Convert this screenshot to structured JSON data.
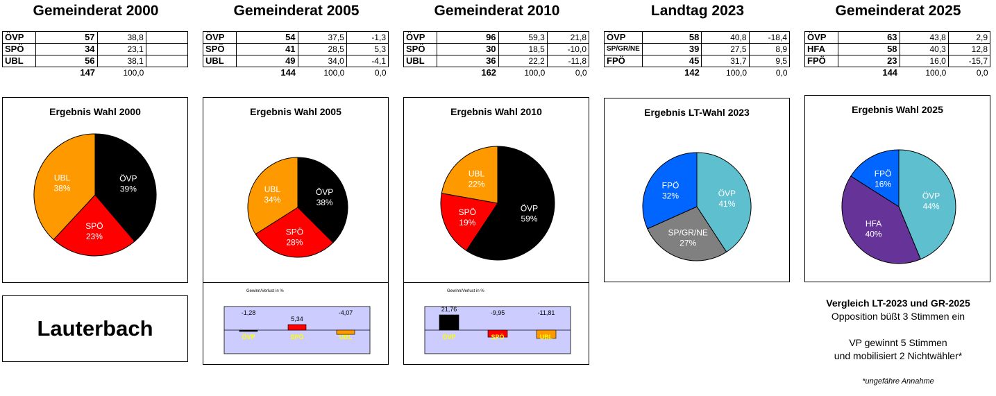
{
  "elections": [
    {
      "heading": "Gemeinderat 2000",
      "chart_title": "Ergebnis Wahl 2000",
      "rows": [
        {
          "party": "ÖVP",
          "seats": "57",
          "pct": "38,8",
          "diff": ""
        },
        {
          "party": "SPÖ",
          "seats": "34",
          "pct": "23,1",
          "diff": ""
        },
        {
          "party": "UBL",
          "seats": "56",
          "pct": "38,1",
          "diff": ""
        }
      ],
      "total": {
        "seats": "147",
        "pct": "100,0",
        "diff": ""
      },
      "chart_data": {
        "type": "pie",
        "title": "Ergebnis Wahl 2000",
        "slices": [
          {
            "name": "ÖVP",
            "value": 38.8,
            "label": "39%",
            "color": "#000000"
          },
          {
            "name": "SPÖ",
            "value": 23.1,
            "label": "23%",
            "color": "#ff0000"
          },
          {
            "name": "UBL",
            "value": 38.1,
            "label": "38%",
            "color": "#ff9900"
          }
        ]
      }
    },
    {
      "heading": "Gemeinderat 2005",
      "chart_title": "Ergebnis Wahl 2005",
      "rows": [
        {
          "party": "ÖVP",
          "seats": "54",
          "pct": "37,5",
          "diff": "-1,3"
        },
        {
          "party": "SPÖ",
          "seats": "41",
          "pct": "28,5",
          "diff": "5,3"
        },
        {
          "party": "UBL",
          "seats": "49",
          "pct": "34,0",
          "diff": "-4,1"
        }
      ],
      "total": {
        "seats": "144",
        "pct": "100,0",
        "diff": "0,0"
      },
      "chart_data": {
        "type": "pie",
        "title": "Ergebnis Wahl 2005",
        "slices": [
          {
            "name": "ÖVP",
            "value": 37.5,
            "label": "38%",
            "color": "#000000"
          },
          {
            "name": "SPÖ",
            "value": 28.5,
            "label": "28%",
            "color": "#ff0000"
          },
          {
            "name": "UBL",
            "value": 34.0,
            "label": "34%",
            "color": "#ff9900"
          }
        ]
      },
      "change": {
        "title": "Gewinn/Verlust in %",
        "chart_data": {
          "type": "bar",
          "categories": [
            "ÖVP",
            "SPÖ",
            "UBL"
          ],
          "values": [
            -1.28,
            5.34,
            -4.07
          ],
          "labels": [
            "-1,28",
            "5,34",
            "-4,07"
          ],
          "colors": [
            "#000000",
            "#ff0000",
            "#ff9900"
          ]
        }
      }
    },
    {
      "heading": "Gemeinderat 2010",
      "chart_title": "Ergebnis Wahl 2010",
      "rows": [
        {
          "party": "ÖVP",
          "seats": "96",
          "pct": "59,3",
          "diff": "21,8"
        },
        {
          "party": "SPÖ",
          "seats": "30",
          "pct": "18,5",
          "diff": "-10,0"
        },
        {
          "party": "UBL",
          "seats": "36",
          "pct": "22,2",
          "diff": "-11,8"
        }
      ],
      "total": {
        "seats": "162",
        "pct": "100,0",
        "diff": "0,0"
      },
      "chart_data": {
        "type": "pie",
        "title": "Ergebnis Wahl 2010",
        "slices": [
          {
            "name": "ÖVP",
            "value": 59.3,
            "label": "59%",
            "color": "#000000"
          },
          {
            "name": "SPÖ",
            "value": 18.5,
            "label": "19%",
            "color": "#ff0000"
          },
          {
            "name": "UBL",
            "value": 22.2,
            "label": "22%",
            "color": "#ff9900"
          }
        ]
      },
      "change": {
        "title": "Gewinn/Verlust in %",
        "chart_data": {
          "type": "bar",
          "categories": [
            "ÖVP",
            "SPÖ",
            "UBL"
          ],
          "values": [
            21.76,
            -9.95,
            -11.81
          ],
          "labels": [
            "21,76",
            "-9,95",
            "-11,81"
          ],
          "colors": [
            "#000000",
            "#ff0000",
            "#ff9900"
          ]
        }
      }
    },
    {
      "heading": "Landtag 2023",
      "chart_title": "Ergebnis LT-Wahl 2023",
      "rows": [
        {
          "party": "ÖVP",
          "seats": "58",
          "pct": "40,8",
          "diff": "-18,4"
        },
        {
          "party": "SP/GR/NE",
          "seats": "39",
          "pct": "27,5",
          "diff": "8,9"
        },
        {
          "party": "FPÖ",
          "seats": "45",
          "pct": "31,7",
          "diff": "9,5"
        }
      ],
      "total": {
        "seats": "142",
        "pct": "100,0",
        "diff": "0,0"
      },
      "chart_data": {
        "type": "pie",
        "title": "Ergebnis LT-Wahl 2023",
        "slices": [
          {
            "name": "ÖVP",
            "value": 40.8,
            "label": "41%",
            "color": "#5ebfcf"
          },
          {
            "name": "SP/GR/NE",
            "value": 27.5,
            "label": "27%",
            "color": "#808080"
          },
          {
            "name": "FPÖ",
            "value": 31.7,
            "label": "32%",
            "color": "#0066ff"
          }
        ]
      }
    },
    {
      "heading": "Gemeinderat 2025",
      "chart_title": "Ergebnis Wahl 2025",
      "rows": [
        {
          "party": "ÖVP",
          "seats": "63",
          "pct": "43,8",
          "diff": "2,9"
        },
        {
          "party": "HFA",
          "seats": "58",
          "pct": "40,3",
          "diff": "12,8"
        },
        {
          "party": "FPÖ",
          "seats": "23",
          "pct": "16,0",
          "diff": "-15,7"
        }
      ],
      "total": {
        "seats": "144",
        "pct": "100,0",
        "diff": "0,0"
      },
      "chart_data": {
        "type": "pie",
        "title": "Ergebnis Wahl 2025",
        "slices": [
          {
            "name": "ÖVP",
            "value": 43.8,
            "label": "44%",
            "color": "#5ebfcf"
          },
          {
            "name": "HFA",
            "value": 40.3,
            "label": "40%",
            "color": "#663399"
          },
          {
            "name": "FPÖ",
            "value": 16.0,
            "label": "16%",
            "color": "#0066ff"
          }
        ]
      }
    }
  ],
  "place_name": "Lauterbach",
  "comparison": {
    "title": "Vergleich LT-2023 und GR-2025",
    "line1": "Opposition büßt 3 Stimmen ein",
    "line2": "VP gewinnt 5 Stimmen",
    "line3": "und mobilisiert 2 Nichtwähler*",
    "footnote": "*ungefähre Annahme"
  },
  "colors": {
    "bar_bg": "#ccccff",
    "bar_label": "#ffff00"
  }
}
